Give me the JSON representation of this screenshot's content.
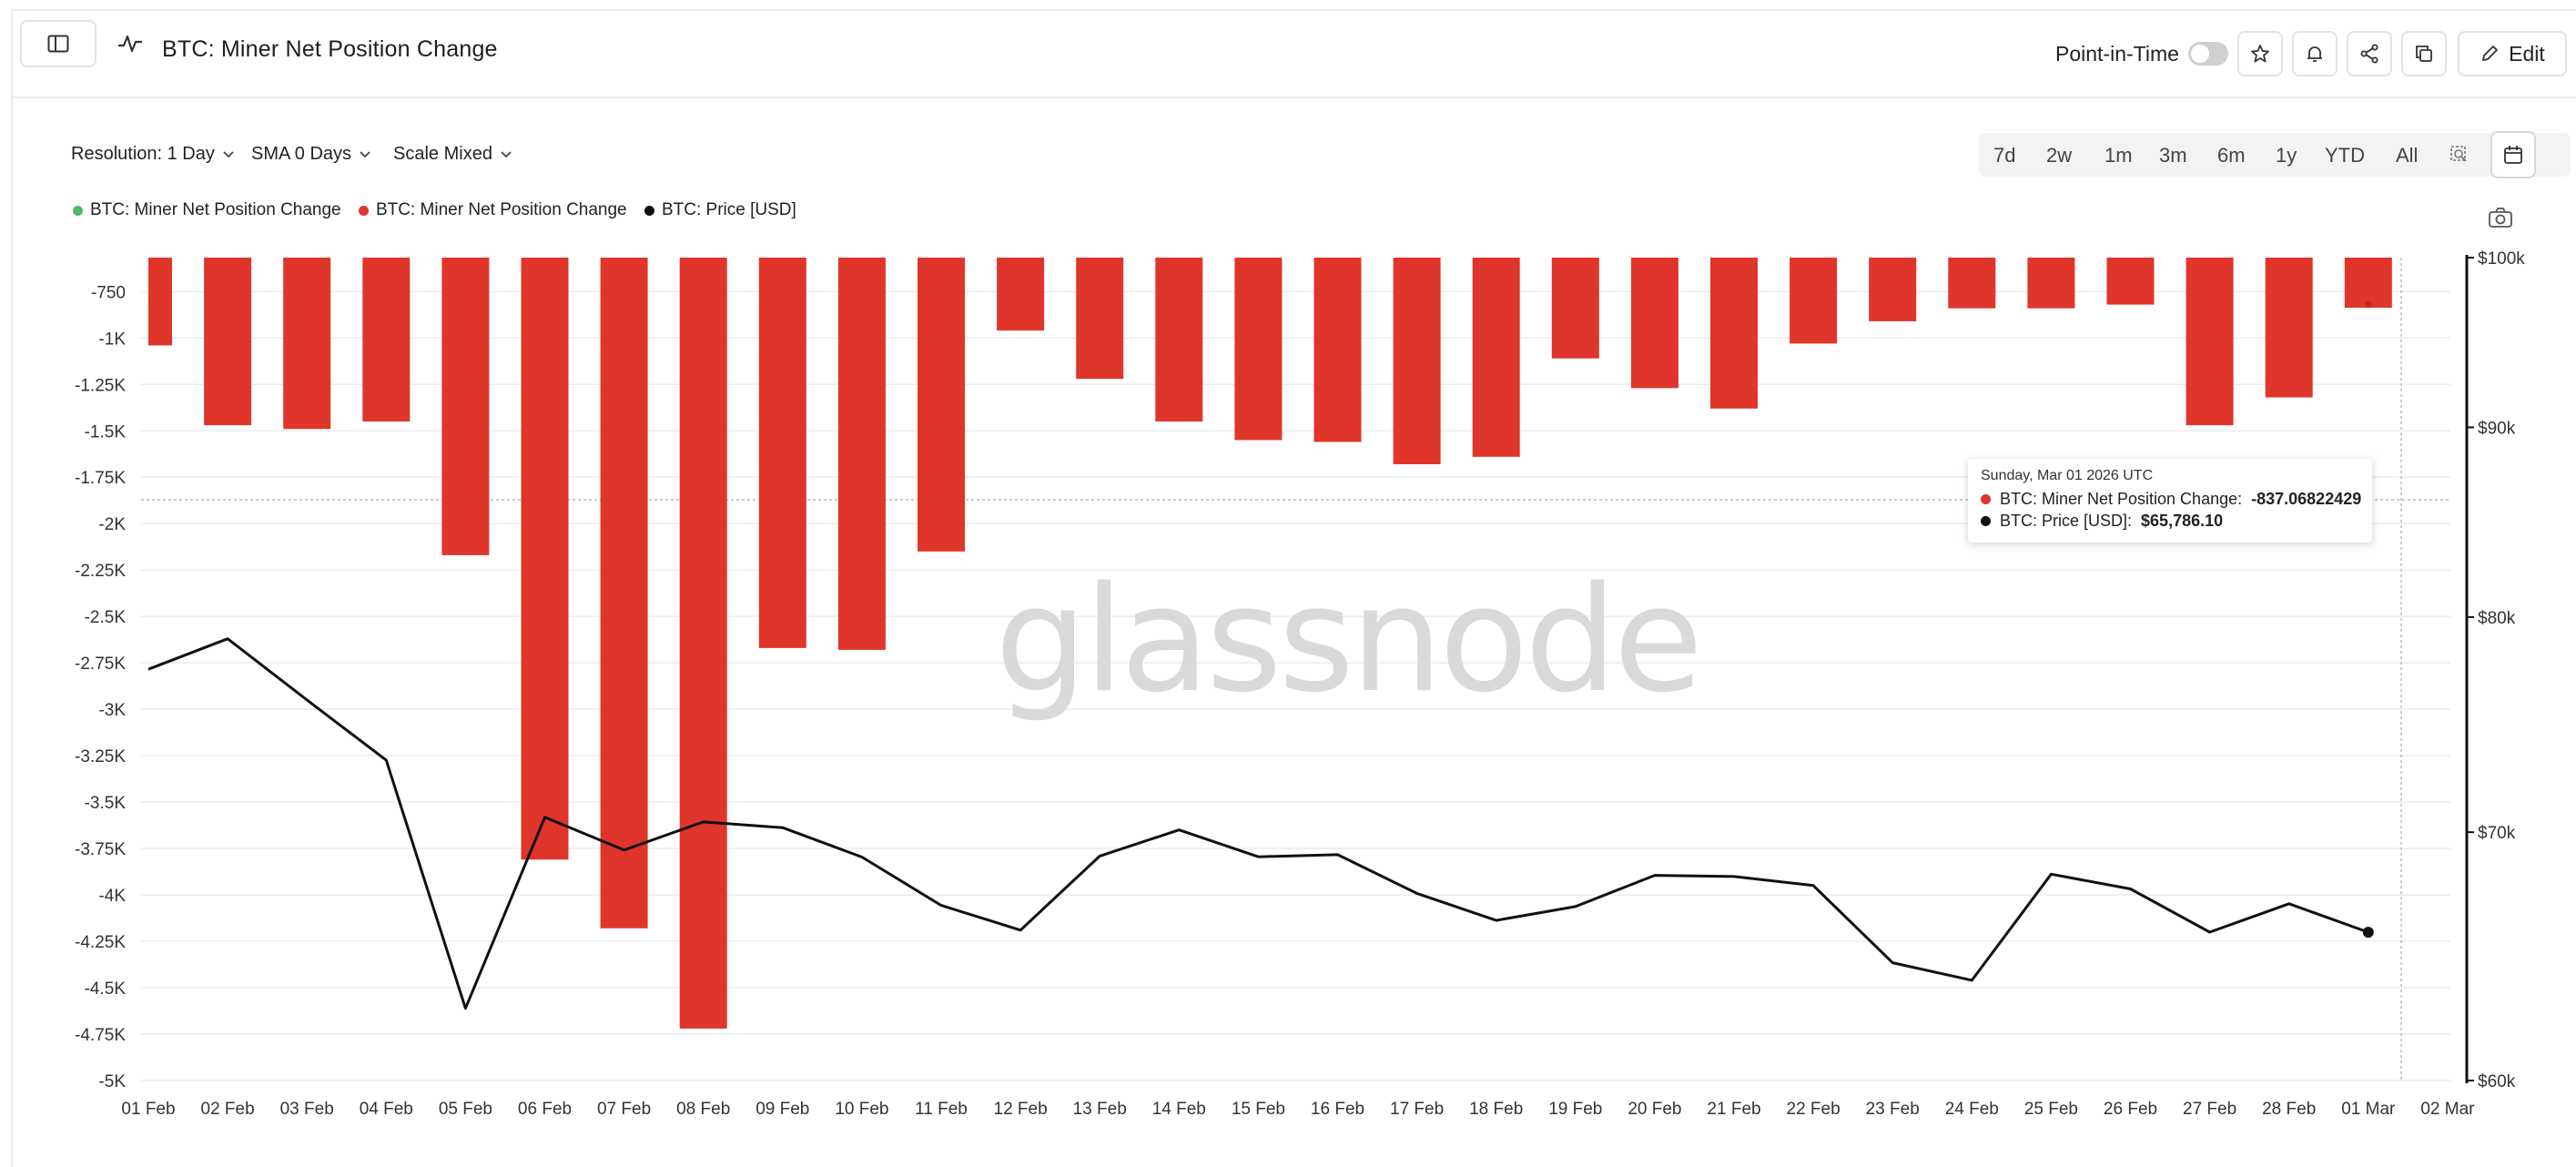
{
  "header": {
    "title": "BTC: Miner Net Position Change",
    "point_in_time_label": "Point-in-Time",
    "edit_label": "Edit"
  },
  "controls": {
    "resolution": "Resolution: 1 Day",
    "sma": "SMA 0 Days",
    "scale": "Scale Mixed"
  },
  "ranges": [
    "7d",
    "2w",
    "1m",
    "3m",
    "6m",
    "1y",
    "YTD",
    "All"
  ],
  "legend": [
    {
      "label": "BTC: Miner Net Position Change",
      "color": "#4cbb6b"
    },
    {
      "label": "BTC: Miner Net Position Change",
      "color": "#e0352b"
    },
    {
      "label": "BTC: Price [USD]",
      "color": "#111111"
    }
  ],
  "watermark": "glassnode",
  "tooltip": {
    "date": "Sunday, Mar 01 2026 UTC",
    "row1_label": "BTC: Miner Net Position Change:",
    "row1_value": "-837.06822429",
    "row2_label": "BTC: Price [USD]:",
    "row2_value": "$65,786.10"
  },
  "chart_data": {
    "type": "bar",
    "categories": [
      "01 Feb",
      "02 Feb",
      "03 Feb",
      "04 Feb",
      "05 Feb",
      "06 Feb",
      "07 Feb",
      "08 Feb",
      "09 Feb",
      "10 Feb",
      "11 Feb",
      "12 Feb",
      "13 Feb",
      "14 Feb",
      "15 Feb",
      "16 Feb",
      "17 Feb",
      "18 Feb",
      "19 Feb",
      "20 Feb",
      "21 Feb",
      "22 Feb",
      "23 Feb",
      "24 Feb",
      "25 Feb",
      "26 Feb",
      "27 Feb",
      "28 Feb",
      "01 Mar"
    ],
    "x_tick_labels": [
      "01 Feb",
      "02 Feb",
      "03 Feb",
      "04 Feb",
      "05 Feb",
      "06 Feb",
      "07 Feb",
      "08 Feb",
      "09 Feb",
      "10 Feb",
      "11 Feb",
      "12 Feb",
      "13 Feb",
      "14 Feb",
      "15 Feb",
      "16 Feb",
      "17 Feb",
      "18 Feb",
      "19 Feb",
      "20 Feb",
      "21 Feb",
      "22 Feb",
      "23 Feb",
      "24 Feb",
      "25 Feb",
      "26 Feb",
      "27 Feb",
      "28 Feb",
      "01 Mar",
      "02 Mar"
    ],
    "series": [
      {
        "name": "BTC: Miner Net Position Change",
        "type": "bar",
        "color": "#e0352b",
        "axis": "left",
        "values": [
          -1040,
          -1470,
          -1490,
          -1450,
          -2170,
          -3810,
          -4180,
          -4720,
          -2670,
          -2680,
          -2150,
          -960,
          -1220,
          -1450,
          -1550,
          -1560,
          -1680,
          -1640,
          -1110,
          -1270,
          -1380,
          -1030,
          -910,
          -840,
          -840,
          -820,
          -1470,
          -1320,
          -837.06822429
        ]
      },
      {
        "name": "BTC: Price [USD]",
        "type": "line",
        "color": "#111111",
        "axis": "right",
        "values": [
          77450,
          78930,
          75990,
          73200,
          62750,
          70650,
          69230,
          70450,
          70200,
          68930,
          66890,
          65870,
          68970,
          70100,
          68940,
          69030,
          67390,
          66270,
          66840,
          68150,
          68100,
          67720,
          64550,
          63850,
          68200,
          67580,
          65790,
          66960,
          65786.1
        ]
      }
    ],
    "y_left": {
      "min": -5000,
      "max": -567,
      "ticks": [
        -750,
        -1000,
        -1250,
        -1500,
        -1750,
        -2000,
        -2250,
        -2500,
        -2750,
        -3000,
        -3250,
        -3500,
        -3750,
        -4000,
        -4250,
        -4500,
        -4750,
        -5000
      ],
      "tick_labels": [
        "-750",
        "-1K",
        "-1.25K",
        "-1.5K",
        "-1.75K",
        "-2K",
        "-2.25K",
        "-2.5K",
        "-2.75K",
        "-3K",
        "-3.25K",
        "-3.5K",
        "-3.75K",
        "-4K",
        "-4.25K",
        "-4.5K",
        "-4.75K",
        "-5K"
      ]
    },
    "y_right": {
      "scale": "log",
      "min": 60000,
      "max": 100000,
      "ticks": [
        100000,
        90000,
        80000,
        70000,
        60000
      ],
      "tick_labels": [
        "$100k",
        "$90k",
        "$80k",
        "$70k",
        "$60k"
      ]
    },
    "grid": true,
    "legend_position": "top-left"
  }
}
